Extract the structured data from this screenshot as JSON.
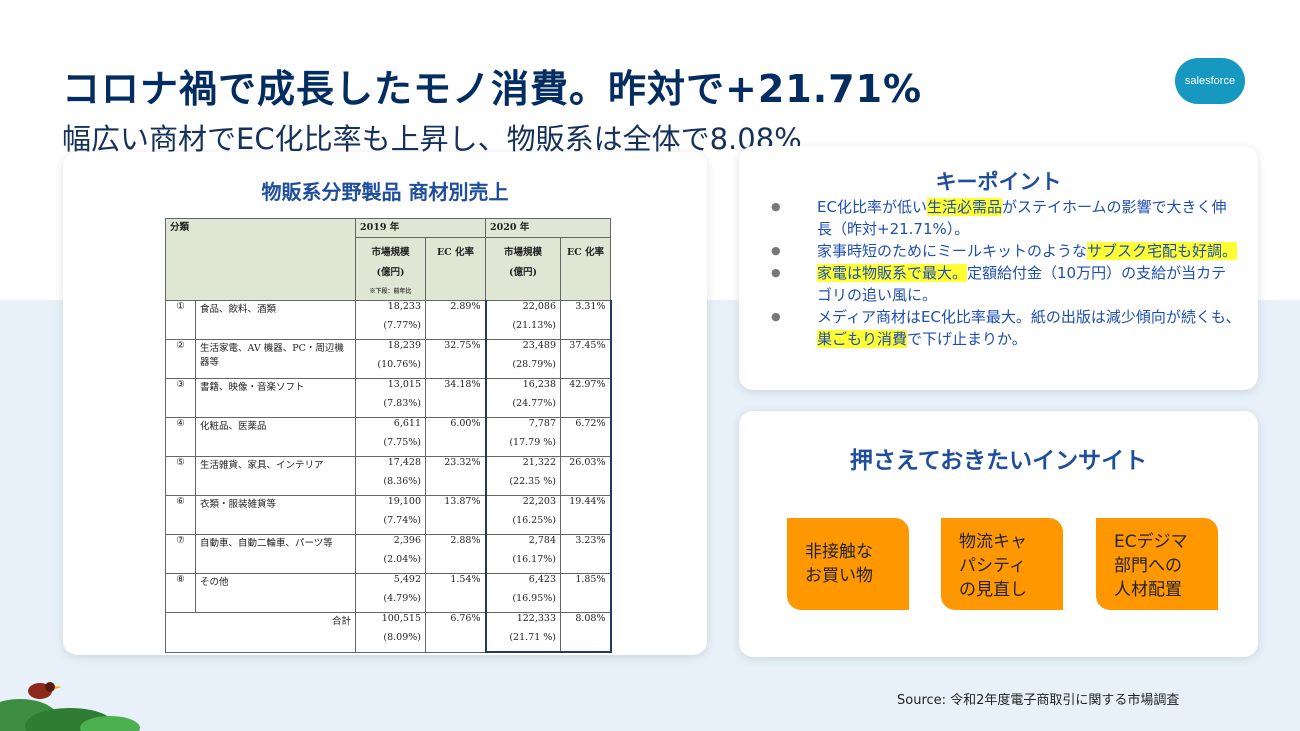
{
  "title": "コロナ禍で成長したモノ消費。昨対で+21.71%",
  "subtitle": "幅広い商材でEC化比率も上昇し、物販系は全体で8.08%",
  "logo_text": "salesforce",
  "table": {
    "heading": "物販系分野製品 商材別売上",
    "col_category": "分類",
    "year_2019": "2019 年",
    "year_2020": "2020 年",
    "market_size": "市場規模",
    "unit": "(億円)",
    "ec_rate": "EC 化率",
    "note": "※下段：前年比",
    "rows": [
      {
        "no": "①",
        "name": "食品、飲料、酒類",
        "v2019": "18,233",
        "y2019": "(7.77%)",
        "ec2019": "2.89%",
        "v2020": "22,086",
        "y2020": "(21.13%)",
        "ec2020": "3.31%"
      },
      {
        "no": "②",
        "name": "生活家電、AV 機器、PC・周辺機器等",
        "v2019": "18,239",
        "y2019": "(10.76%)",
        "ec2019": "32.75%",
        "v2020": "23,489",
        "y2020": "(28.79%)",
        "ec2020": "37.45%"
      },
      {
        "no": "③",
        "name": "書籍、映像・音楽ソフト",
        "v2019": "13,015",
        "y2019": "(7.83%)",
        "ec2019": "34.18%",
        "v2020": "16,238",
        "y2020": "(24.77%)",
        "ec2020": "42.97%"
      },
      {
        "no": "④",
        "name": "化粧品、医薬品",
        "v2019": "6,611",
        "y2019": "(7.75%)",
        "ec2019": "6.00%",
        "v2020": "7,787",
        "y2020": "(17.79 %)",
        "ec2020": "6.72%"
      },
      {
        "no": "⑤",
        "name": "生活雑貨、家具、インテリア",
        "v2019": "17,428",
        "y2019": "(8.36%)",
        "ec2019": "23.32%",
        "v2020": "21,322",
        "y2020": "(22.35 %)",
        "ec2020": "26.03%"
      },
      {
        "no": "⑥",
        "name": "衣類・服装雑貨等",
        "v2019": "19,100",
        "y2019": "(7.74%)",
        "ec2019": "13.87%",
        "v2020": "22,203",
        "y2020": "(16.25%)",
        "ec2020": "19.44%"
      },
      {
        "no": "⑦",
        "name": "自動車、自動二輪車、パーツ等",
        "v2019": "2,396",
        "y2019": "(2.04%)",
        "ec2019": "2.88%",
        "v2020": "2,784",
        "y2020": "(16.17%)",
        "ec2020": "3.23%"
      },
      {
        "no": "⑧",
        "name": "その他",
        "v2019": "5,492",
        "y2019": "(4.79%)",
        "ec2019": "1.54%",
        "v2020": "6,423",
        "y2020": "(16.95%)",
        "ec2020": "1.85%"
      }
    ],
    "total": {
      "label": "合計",
      "v2019": "100,515",
      "y2019": "(8.09%)",
      "ec2019": "6.76%",
      "v2020": "122,333",
      "y2020": "(21.71 %)",
      "ec2020": "8.08%"
    }
  },
  "key_points": {
    "heading": "キーポイント",
    "p1_a": "EC化比率が低い",
    "p1_hl": "生活必需品",
    "p1_b": "がステイホームの影響で大きく伸長（昨対+21.71%）。",
    "p2_a": "家事時短のためにミールキットのような",
    "p2_hl": "サブスク宅配も好調。",
    "p3_hl": "家電は物販系で最大。",
    "p3_b": "定額給付金（10万円）の支給が当カテゴリの追い風に。",
    "p4_a": "メディア商材はEC化比率最大。紙の出版は減少傾向が続くも、",
    "p4_hl": "巣ごもり消費",
    "p4_b": "で下げ止まりか。"
  },
  "insights": {
    "heading": "押さえておきたいインサイト",
    "box1_l1": "非接触な",
    "box1_l2": "お買い物",
    "box2_l1": "物流キャ",
    "box2_l2": "パシティ",
    "box2_l3": "の見直し",
    "box3_l1": "ECデジマ",
    "box3_l2": "部門への",
    "box3_l3": "人材配置"
  },
  "source": "Source: 令和2年度電子商取引に関する市場調査",
  "colors": {
    "title": "#032d60",
    "accent_blue": "#1f4e9b",
    "orange": "#ff9800",
    "highlight": "#ffff33",
    "bg_lower": "#e8f1fa"
  }
}
